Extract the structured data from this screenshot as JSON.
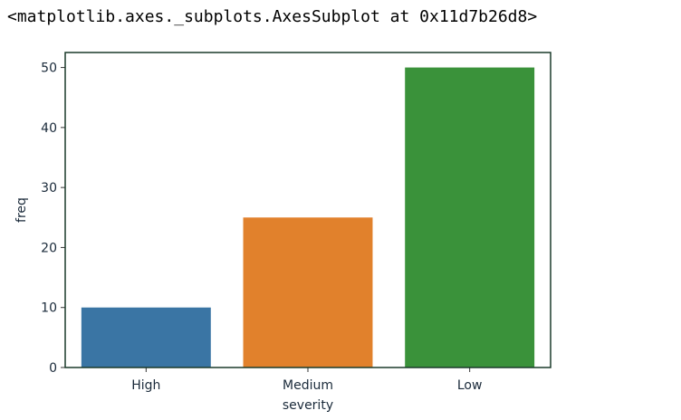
{
  "output_repr": "<matplotlib.axes._subplots.AxesSubplot at 0x11d7b26d8>",
  "chart_data": {
    "type": "bar",
    "categories": [
      "High",
      "Medium",
      "Low"
    ],
    "values": [
      10,
      25,
      50
    ],
    "colors": [
      "#3a75a4",
      "#e1812c",
      "#3a923a"
    ],
    "xlabel": "severity",
    "ylabel": "freq",
    "ylim": [
      0,
      52.5
    ],
    "yticks": [
      0,
      10,
      20,
      30,
      40,
      50
    ],
    "grid": false,
    "axis_color": "#1a3a2a"
  }
}
